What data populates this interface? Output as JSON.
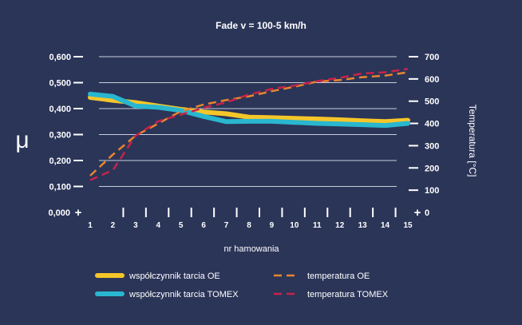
{
  "chart_data": {
    "type": "line",
    "title": "Fade v = 100-5 km/h",
    "xlabel": "nr hamowania",
    "ylabel_left": "μ",
    "ylabel_right": "Temperatura [°C]",
    "x": [
      1,
      2,
      3,
      4,
      5,
      6,
      7,
      8,
      9,
      10,
      11,
      12,
      13,
      14,
      15
    ],
    "y_left_ticks": [
      "0,000",
      "0,100",
      "0,200",
      "0,300",
      "0,400",
      "0,500",
      "0,600"
    ],
    "y_left_range": [
      0,
      0.6
    ],
    "y_right_ticks": [
      "0",
      "100",
      "200",
      "300",
      "400",
      "500",
      "600",
      "700"
    ],
    "y_right_range": [
      0,
      700
    ],
    "grid": true,
    "legend_position": "bottom",
    "series": [
      {
        "name": "współczynnik tarcia OE",
        "axis": "left",
        "style": "solid",
        "color": "#f6c629",
        "values": [
          0.443,
          0.432,
          0.423,
          0.41,
          0.397,
          0.387,
          0.38,
          0.367,
          0.365,
          0.362,
          0.36,
          0.357,
          0.353,
          0.35,
          0.355
        ]
      },
      {
        "name": "współczynnik tarcia TOMEX",
        "axis": "left",
        "style": "solid",
        "color": "#29b6cf",
        "values": [
          0.456,
          0.447,
          0.41,
          0.405,
          0.393,
          0.37,
          0.35,
          0.351,
          0.351,
          0.347,
          0.343,
          0.341,
          0.338,
          0.335,
          0.343
        ]
      },
      {
        "name": "temperatura OE",
        "axis": "right",
        "style": "dashed",
        "color": "#e8862e",
        "values": [
          165,
          260,
          345,
          400,
          455,
          485,
          505,
          522,
          545,
          565,
          588,
          595,
          608,
          615,
          630
        ]
      },
      {
        "name": "temperatura TOMEX",
        "axis": "right",
        "style": "dashed",
        "color": "#c8234a",
        "values": [
          145,
          190,
          345,
          410,
          440,
          470,
          495,
          530,
          555,
          570,
          590,
          605,
          625,
          630,
          645
        ]
      }
    ]
  }
}
